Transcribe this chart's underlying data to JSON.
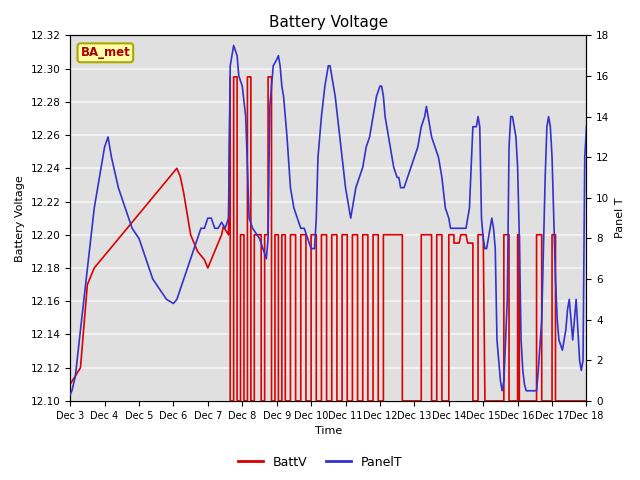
{
  "title": "Battery Voltage",
  "xlabel": "Time",
  "ylabel_left": "Battery Voltage",
  "ylabel_right": "Panel T",
  "xlim": [
    0,
    15
  ],
  "ylim_left": [
    12.1,
    12.32
  ],
  "ylim_right": [
    0,
    18
  ],
  "x_tick_positions": [
    0,
    1,
    2,
    3,
    4,
    5,
    6,
    7,
    8,
    9,
    10,
    11,
    12,
    13,
    14,
    15
  ],
  "x_tick_labels": [
    "Dec 3",
    "Dec 4",
    "Dec 5",
    "Dec 6",
    "Dec 7",
    "Dec 8",
    "Dec 9",
    "Dec 10",
    "Dec 11",
    "Dec 12",
    "Dec 13",
    "Dec 14",
    "Dec 15",
    "Dec 16",
    "Dec 17",
    "Dec 18"
  ],
  "yticks_left": [
    12.1,
    12.12,
    12.14,
    12.16,
    12.18,
    12.2,
    12.22,
    12.24,
    12.26,
    12.28,
    12.3,
    12.32
  ],
  "yticks_right": [
    0,
    2,
    4,
    6,
    8,
    10,
    12,
    14,
    16,
    18
  ],
  "background_color": "#ffffff",
  "plot_bg_color": "#e0e0e0",
  "grid_color": "#f5f5f5",
  "ba_met_box_facecolor": "#ffffaa",
  "ba_met_box_edgecolor": "#aaa800",
  "ba_met_text_color": "#aa0000",
  "batt_color": "#dd0000",
  "panel_color": "#3333cc",
  "batt_data": [
    [
      0.0,
      12.11
    ],
    [
      0.15,
      12.115
    ],
    [
      0.3,
      12.12
    ],
    [
      0.5,
      12.17
    ],
    [
      0.7,
      12.18
    ],
    [
      0.9,
      12.185
    ],
    [
      1.1,
      12.19
    ],
    [
      1.3,
      12.195
    ],
    [
      1.5,
      12.2
    ],
    [
      1.7,
      12.205
    ],
    [
      1.9,
      12.21
    ],
    [
      2.1,
      12.215
    ],
    [
      2.3,
      12.22
    ],
    [
      2.5,
      12.225
    ],
    [
      2.7,
      12.23
    ],
    [
      2.9,
      12.235
    ],
    [
      3.1,
      12.24
    ],
    [
      3.2,
      12.235
    ],
    [
      3.3,
      12.225
    ],
    [
      3.5,
      12.2
    ],
    [
      3.7,
      12.19
    ],
    [
      3.9,
      12.185
    ],
    [
      4.0,
      12.18
    ],
    [
      4.1,
      12.185
    ],
    [
      4.2,
      12.19
    ],
    [
      4.3,
      12.195
    ],
    [
      4.4,
      12.2
    ],
    [
      4.45,
      12.205
    ],
    [
      4.6,
      12.2
    ],
    [
      4.65,
      12.295
    ],
    [
      4.65,
      12.1
    ],
    [
      4.75,
      12.1
    ],
    [
      4.75,
      12.295
    ],
    [
      4.85,
      12.295
    ],
    [
      4.85,
      12.1
    ],
    [
      4.95,
      12.1
    ],
    [
      4.95,
      12.2
    ],
    [
      5.05,
      12.2
    ],
    [
      5.05,
      12.1
    ],
    [
      5.15,
      12.1
    ],
    [
      5.15,
      12.295
    ],
    [
      5.25,
      12.295
    ],
    [
      5.25,
      12.1
    ],
    [
      5.35,
      12.1
    ],
    [
      5.35,
      12.2
    ],
    [
      5.45,
      12.2
    ],
    [
      5.5,
      12.2
    ],
    [
      5.55,
      12.2
    ],
    [
      5.55,
      12.1
    ],
    [
      5.65,
      12.1
    ],
    [
      5.65,
      12.2
    ],
    [
      5.75,
      12.2
    ],
    [
      5.75,
      12.295
    ],
    [
      5.85,
      12.295
    ],
    [
      5.85,
      12.1
    ],
    [
      5.95,
      12.1
    ],
    [
      5.95,
      12.2
    ],
    [
      6.05,
      12.2
    ],
    [
      6.05,
      12.1
    ],
    [
      6.15,
      12.1
    ],
    [
      6.15,
      12.2
    ],
    [
      6.25,
      12.2
    ],
    [
      6.25,
      12.1
    ],
    [
      6.4,
      12.1
    ],
    [
      6.4,
      12.2
    ],
    [
      6.55,
      12.2
    ],
    [
      6.55,
      12.1
    ],
    [
      6.7,
      12.1
    ],
    [
      6.7,
      12.2
    ],
    [
      6.85,
      12.2
    ],
    [
      6.85,
      12.1
    ],
    [
      7.0,
      12.1
    ],
    [
      7.0,
      12.2
    ],
    [
      7.15,
      12.2
    ],
    [
      7.15,
      12.1
    ],
    [
      7.3,
      12.1
    ],
    [
      7.3,
      12.2
    ],
    [
      7.45,
      12.2
    ],
    [
      7.45,
      12.1
    ],
    [
      7.6,
      12.1
    ],
    [
      7.6,
      12.2
    ],
    [
      7.75,
      12.2
    ],
    [
      7.75,
      12.1
    ],
    [
      7.9,
      12.1
    ],
    [
      7.9,
      12.2
    ],
    [
      8.05,
      12.2
    ],
    [
      8.05,
      12.1
    ],
    [
      8.2,
      12.1
    ],
    [
      8.2,
      12.2
    ],
    [
      8.35,
      12.2
    ],
    [
      8.35,
      12.1
    ],
    [
      8.5,
      12.1
    ],
    [
      8.5,
      12.2
    ],
    [
      8.65,
      12.2
    ],
    [
      8.65,
      12.1
    ],
    [
      8.8,
      12.1
    ],
    [
      8.8,
      12.2
    ],
    [
      8.95,
      12.2
    ],
    [
      8.95,
      12.1
    ],
    [
      9.1,
      12.1
    ],
    [
      9.1,
      12.2
    ],
    [
      9.6,
      12.2
    ],
    [
      9.65,
      12.2
    ],
    [
      9.65,
      12.1
    ],
    [
      10.2,
      12.1
    ],
    [
      10.2,
      12.2
    ],
    [
      10.5,
      12.2
    ],
    [
      10.5,
      12.1
    ],
    [
      10.65,
      12.1
    ],
    [
      10.65,
      12.2
    ],
    [
      10.8,
      12.2
    ],
    [
      10.8,
      12.1
    ],
    [
      11.0,
      12.1
    ],
    [
      11.0,
      12.2
    ],
    [
      11.15,
      12.2
    ],
    [
      11.15,
      12.195
    ],
    [
      11.3,
      12.195
    ],
    [
      11.35,
      12.2
    ],
    [
      11.5,
      12.2
    ],
    [
      11.55,
      12.195
    ],
    [
      11.7,
      12.195
    ],
    [
      11.7,
      12.1
    ],
    [
      11.85,
      12.1
    ],
    [
      11.85,
      12.2
    ],
    [
      12.0,
      12.2
    ],
    [
      12.05,
      12.1
    ],
    [
      12.6,
      12.1
    ],
    [
      12.6,
      12.2
    ],
    [
      12.75,
      12.2
    ],
    [
      12.75,
      12.1
    ],
    [
      13.0,
      12.1
    ],
    [
      13.0,
      12.2
    ],
    [
      13.05,
      12.2
    ],
    [
      13.05,
      12.1
    ],
    [
      13.55,
      12.1
    ],
    [
      13.55,
      12.2
    ],
    [
      13.7,
      12.2
    ],
    [
      13.7,
      12.1
    ],
    [
      14.0,
      12.1
    ],
    [
      14.0,
      12.2
    ],
    [
      14.1,
      12.2
    ],
    [
      14.1,
      12.1
    ],
    [
      15.0,
      12.1
    ]
  ],
  "panel_data": [
    [
      0.0,
      0.3
    ],
    [
      0.05,
      0.5
    ],
    [
      0.15,
      1.2
    ],
    [
      0.3,
      3.5
    ],
    [
      0.5,
      6.5
    ],
    [
      0.7,
      9.5
    ],
    [
      0.9,
      11.5
    ],
    [
      1.0,
      12.5
    ],
    [
      1.1,
      13.0
    ],
    [
      1.2,
      12.0
    ],
    [
      1.4,
      10.5
    ],
    [
      1.6,
      9.5
    ],
    [
      1.8,
      8.5
    ],
    [
      2.0,
      8.0
    ],
    [
      2.2,
      7.0
    ],
    [
      2.4,
      6.0
    ],
    [
      2.6,
      5.5
    ],
    [
      2.8,
      5.0
    ],
    [
      3.0,
      4.8
    ],
    [
      3.1,
      5.0
    ],
    [
      3.2,
      5.5
    ],
    [
      3.4,
      6.5
    ],
    [
      3.5,
      7.0
    ],
    [
      3.6,
      7.5
    ],
    [
      3.7,
      8.0
    ],
    [
      3.8,
      8.5
    ],
    [
      3.9,
      8.5
    ],
    [
      4.0,
      9.0
    ],
    [
      4.1,
      9.0
    ],
    [
      4.2,
      8.5
    ],
    [
      4.3,
      8.5
    ],
    [
      4.4,
      8.8
    ],
    [
      4.5,
      8.5
    ],
    [
      4.6,
      9.0
    ],
    [
      4.65,
      16.5
    ],
    [
      4.75,
      17.5
    ],
    [
      4.85,
      17.0
    ],
    [
      4.9,
      16.0
    ],
    [
      5.0,
      15.5
    ],
    [
      5.1,
      14.0
    ],
    [
      5.2,
      9.0
    ],
    [
      5.3,
      8.5
    ],
    [
      5.5,
      8.0
    ],
    [
      5.6,
      7.5
    ],
    [
      5.7,
      7.0
    ],
    [
      5.75,
      8.0
    ],
    [
      5.8,
      14.5
    ],
    [
      5.9,
      16.5
    ],
    [
      6.0,
      16.8
    ],
    [
      6.05,
      17.0
    ],
    [
      6.1,
      16.5
    ],
    [
      6.15,
      15.5
    ],
    [
      6.2,
      15.0
    ],
    [
      6.3,
      13.0
    ],
    [
      6.4,
      10.5
    ],
    [
      6.5,
      9.5
    ],
    [
      6.6,
      9.0
    ],
    [
      6.7,
      8.5
    ],
    [
      6.8,
      8.5
    ],
    [
      6.9,
      8.0
    ],
    [
      7.0,
      7.5
    ],
    [
      7.1,
      7.5
    ],
    [
      7.15,
      9.0
    ],
    [
      7.2,
      12.0
    ],
    [
      7.3,
      14.0
    ],
    [
      7.4,
      15.5
    ],
    [
      7.5,
      16.5
    ],
    [
      7.55,
      16.5
    ],
    [
      7.6,
      16.0
    ],
    [
      7.7,
      15.0
    ],
    [
      7.8,
      13.5
    ],
    [
      7.9,
      12.0
    ],
    [
      8.0,
      10.5
    ],
    [
      8.1,
      9.5
    ],
    [
      8.15,
      9.0
    ],
    [
      8.2,
      9.5
    ],
    [
      8.3,
      10.5
    ],
    [
      8.4,
      11.0
    ],
    [
      8.5,
      11.5
    ],
    [
      8.6,
      12.5
    ],
    [
      8.7,
      13.0
    ],
    [
      8.8,
      14.0
    ],
    [
      8.85,
      14.5
    ],
    [
      8.9,
      15.0
    ],
    [
      9.0,
      15.5
    ],
    [
      9.05,
      15.5
    ],
    [
      9.1,
      15.0
    ],
    [
      9.15,
      14.0
    ],
    [
      9.2,
      13.5
    ],
    [
      9.3,
      12.5
    ],
    [
      9.4,
      11.5
    ],
    [
      9.5,
      11.0
    ],
    [
      9.55,
      11.0
    ],
    [
      9.6,
      10.5
    ],
    [
      9.7,
      10.5
    ],
    [
      9.8,
      11.0
    ],
    [
      9.9,
      11.5
    ],
    [
      10.0,
      12.0
    ],
    [
      10.1,
      12.5
    ],
    [
      10.15,
      13.0
    ],
    [
      10.2,
      13.5
    ],
    [
      10.3,
      14.0
    ],
    [
      10.35,
      14.5
    ],
    [
      10.4,
      14.0
    ],
    [
      10.45,
      13.5
    ],
    [
      10.5,
      13.0
    ],
    [
      10.6,
      12.5
    ],
    [
      10.7,
      12.0
    ],
    [
      10.8,
      11.0
    ],
    [
      10.9,
      9.5
    ],
    [
      11.0,
      9.0
    ],
    [
      11.05,
      8.5
    ],
    [
      11.1,
      8.5
    ],
    [
      11.2,
      8.5
    ],
    [
      11.3,
      8.5
    ],
    [
      11.4,
      8.5
    ],
    [
      11.5,
      8.5
    ],
    [
      11.55,
      9.0
    ],
    [
      11.6,
      9.5
    ],
    [
      11.7,
      13.5
    ],
    [
      11.8,
      13.5
    ],
    [
      11.85,
      14.0
    ],
    [
      11.9,
      13.5
    ],
    [
      11.95,
      9.0
    ],
    [
      12.0,
      8.0
    ],
    [
      12.05,
      7.5
    ],
    [
      12.1,
      7.5
    ],
    [
      12.15,
      8.0
    ],
    [
      12.2,
      8.5
    ],
    [
      12.25,
      9.0
    ],
    [
      12.3,
      8.5
    ],
    [
      12.35,
      7.5
    ],
    [
      12.4,
      3.0
    ],
    [
      12.5,
      1.0
    ],
    [
      12.55,
      0.5
    ],
    [
      12.6,
      1.0
    ],
    [
      12.7,
      5.0
    ],
    [
      12.75,
      12.5
    ],
    [
      12.8,
      14.0
    ],
    [
      12.85,
      14.0
    ],
    [
      12.9,
      13.5
    ],
    [
      12.95,
      13.0
    ],
    [
      13.0,
      11.5
    ],
    [
      13.05,
      8.0
    ],
    [
      13.1,
      3.0
    ],
    [
      13.15,
      1.5
    ],
    [
      13.2,
      0.8
    ],
    [
      13.25,
      0.5
    ],
    [
      13.3,
      0.5
    ],
    [
      13.4,
      0.5
    ],
    [
      13.5,
      0.5
    ],
    [
      13.55,
      0.5
    ],
    [
      13.6,
      1.5
    ],
    [
      13.7,
      4.0
    ],
    [
      13.8,
      11.0
    ],
    [
      13.85,
      13.5
    ],
    [
      13.9,
      14.0
    ],
    [
      13.95,
      13.5
    ],
    [
      14.0,
      12.0
    ],
    [
      14.05,
      9.0
    ],
    [
      14.1,
      6.0
    ],
    [
      14.15,
      4.0
    ],
    [
      14.2,
      3.0
    ],
    [
      14.3,
      2.5
    ],
    [
      14.4,
      3.5
    ],
    [
      14.45,
      4.5
    ],
    [
      14.5,
      5.0
    ],
    [
      14.55,
      4.0
    ],
    [
      14.6,
      3.0
    ],
    [
      14.65,
      4.0
    ],
    [
      14.7,
      5.0
    ],
    [
      14.75,
      3.5
    ],
    [
      14.8,
      2.0
    ],
    [
      14.85,
      1.5
    ],
    [
      14.9,
      2.0
    ],
    [
      14.95,
      12.0
    ],
    [
      15.0,
      13.5
    ]
  ]
}
